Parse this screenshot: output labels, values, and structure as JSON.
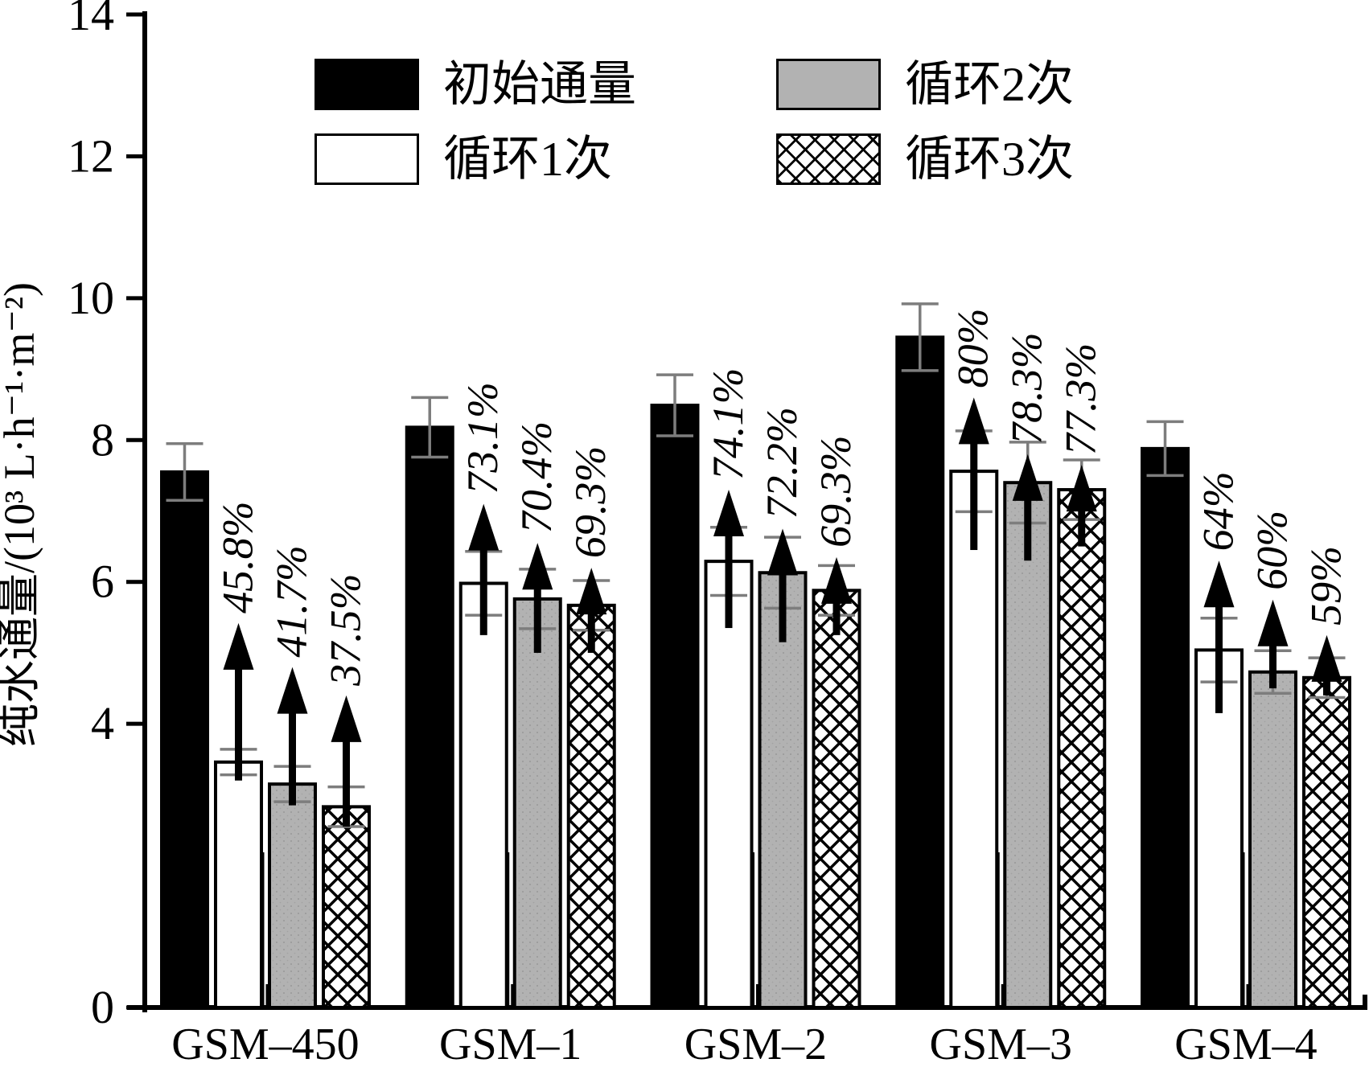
{
  "chart_data": {
    "type": "bar",
    "title": "",
    "ylabel": "纯水通量/(10³ L·h⁻¹·m⁻²)",
    "ylim": [
      0,
      14
    ],
    "yticks": [
      0,
      4,
      6,
      8,
      10,
      12,
      14
    ],
    "grid": "off",
    "legend_position": "top-inside-two-columns",
    "categories": [
      "GSM–450",
      "GSM–1",
      "GSM–2",
      "GSM–3",
      "GSM–4"
    ],
    "series": [
      {
        "name": "初始通量",
        "style": "solid-black",
        "values": [
          7.55,
          8.18,
          8.49,
          9.45,
          7.88
        ],
        "errors": [
          0.4,
          0.42,
          0.43,
          0.47,
          0.38
        ]
      },
      {
        "name": "循环1次",
        "style": "white",
        "values": [
          3.46,
          5.98,
          6.29,
          7.56,
          5.04
        ],
        "errors": [
          0.18,
          0.45,
          0.48,
          0.57,
          0.45
        ]
      },
      {
        "name": "循环2次",
        "style": "gray",
        "values": [
          3.15,
          5.76,
          6.13,
          7.4,
          4.73
        ],
        "errors": [
          0.25,
          0.42,
          0.5,
          0.57,
          0.3
        ]
      },
      {
        "name": "循环3次",
        "style": "crosshatch",
        "values": [
          2.83,
          5.67,
          5.88,
          7.3,
          4.65
        ],
        "errors": [
          0.28,
          0.35,
          0.35,
          0.42,
          0.28
        ]
      }
    ],
    "recovery_labels": [
      {
        "series": 1,
        "group": 0,
        "text": "45.8%",
        "arrow": [
          3.2,
          5.42
        ]
      },
      {
        "series": 2,
        "group": 0,
        "text": "41.7%",
        "arrow": [
          2.85,
          4.8
        ]
      },
      {
        "series": 3,
        "group": 0,
        "text": "37.5%",
        "arrow": [
          2.55,
          4.4
        ]
      },
      {
        "series": 1,
        "group": 1,
        "text": "73.1%",
        "arrow": [
          5.25,
          7.1
        ]
      },
      {
        "series": 2,
        "group": 1,
        "text": "70.4%",
        "arrow": [
          5.0,
          6.55
        ]
      },
      {
        "series": 3,
        "group": 1,
        "text": "69.3%",
        "arrow": [
          5.0,
          6.2
        ]
      },
      {
        "series": 1,
        "group": 2,
        "text": "74.1%",
        "arrow": [
          5.35,
          7.3
        ]
      },
      {
        "series": 2,
        "group": 2,
        "text": "72.2%",
        "arrow": [
          5.15,
          6.75
        ]
      },
      {
        "series": 3,
        "group": 2,
        "text": "69.3%",
        "arrow": [
          5.25,
          6.35
        ]
      },
      {
        "series": 1,
        "group": 3,
        "text": "80%",
        "arrow": [
          6.45,
          8.6
        ]
      },
      {
        "series": 2,
        "group": 3,
        "text": "78.3%",
        "arrow": [
          6.3,
          7.8
        ]
      },
      {
        "series": 3,
        "group": 3,
        "text": "77.3%",
        "arrow": [
          6.5,
          7.65
        ]
      },
      {
        "series": 1,
        "group": 4,
        "text": "64%",
        "arrow": [
          4.15,
          6.3
        ]
      },
      {
        "series": 2,
        "group": 4,
        "text": "60%",
        "arrow": [
          4.5,
          5.75
        ]
      },
      {
        "series": 3,
        "group": 4,
        "text": "59%",
        "arrow": [
          4.4,
          5.25
        ]
      }
    ],
    "colors": {
      "bar_black": "#000000",
      "bar_gray": "#b2b2b2",
      "bar_white": "#ffffff",
      "error_bar": "#7d7d7d",
      "background": "#ffffff",
      "axis": "#000000"
    }
  }
}
